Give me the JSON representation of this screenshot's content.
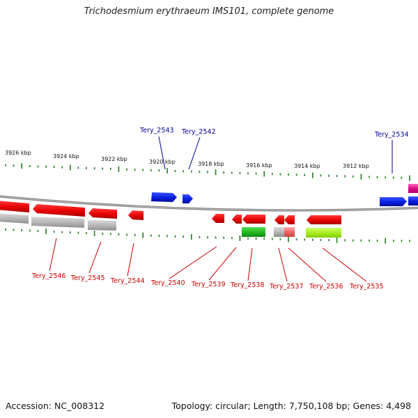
{
  "title": "Trichodesmium erythraeum IMS101, complete genome",
  "footer": {
    "accession": "Accession: NC_008312",
    "topology": "Topology: circular; Length: 7,750,108 bp; Genes: 4,498"
  },
  "scale_labels": [
    "3926 kbp",
    "3924 kbp",
    "3922 kbp",
    "3920 kbp",
    "3918 kbp",
    "3916 kbp",
    "3914 kbp",
    "3912 kbp"
  ],
  "genes_forward": [
    "Tery_2543",
    "Tery_2542",
    "Tery_2534"
  ],
  "genes_reverse": [
    "Tery_2546",
    "Tery_2545",
    "Tery_2544",
    "Tery_2540",
    "Tery_2539",
    "Tery_2538",
    "Tery_2537",
    "Tery_2536",
    "Tery_2535"
  ],
  "colors": {
    "forward_gene": "#0a1ee0",
    "reverse_gene": "#e00000",
    "forward_label": "#000099",
    "reverse_label": "#cc0000",
    "ticks": "#1f7a1f",
    "backbone": "#888888",
    "gray_feature": "#b8b8b8",
    "green_feature": "#22bb22",
    "lime_feature": "#aaee22",
    "magenta_feature": "#dd1188"
  }
}
